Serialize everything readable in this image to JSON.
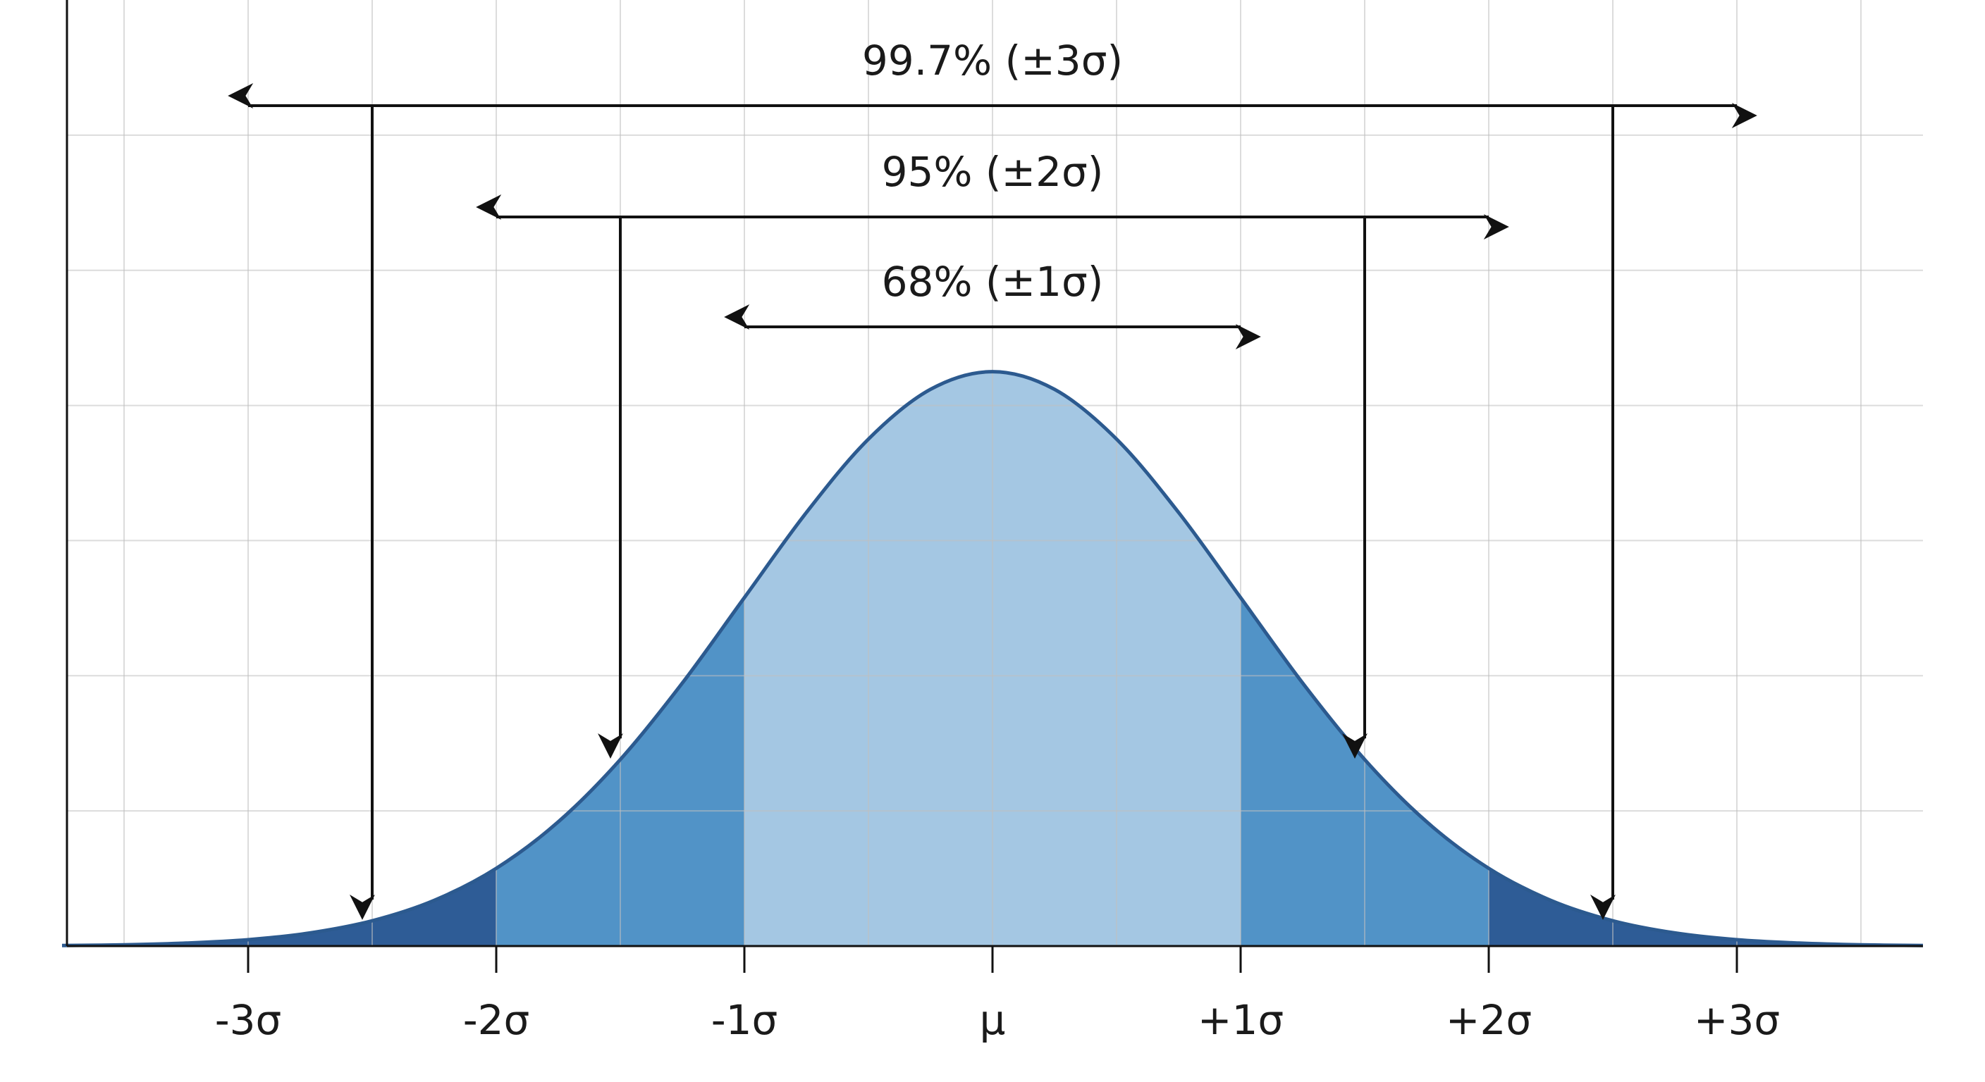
{
  "chart_data": {
    "type": "area",
    "x": [
      -3.75,
      -3.5,
      -3.25,
      -3,
      -2.75,
      -2.5,
      -2.25,
      -2,
      -1.75,
      -1.5,
      -1.25,
      -1,
      -0.75,
      -0.5,
      -0.25,
      0,
      0.25,
      0.5,
      0.75,
      1,
      1.25,
      1.5,
      1.75,
      2,
      2.25,
      2.5,
      2.75,
      3,
      3.25,
      3.5,
      3.75
    ],
    "values": [
      0.004,
      0.009,
      0.022,
      0.047,
      0.097,
      0.187,
      0.338,
      0.575,
      0.919,
      1.38,
      1.946,
      2.578,
      3.208,
      3.751,
      4.119,
      4.25,
      4.119,
      3.751,
      3.208,
      2.578,
      1.946,
      1.38,
      0.919,
      0.575,
      0.338,
      0.187,
      0.097,
      0.047,
      0.022,
      0.009,
      0.004
    ],
    "color": "#2c5a8f",
    "xlim": [
      -3.75,
      3.75
    ],
    "ylim": [
      0,
      7
    ],
    "xticks": [
      {
        "value": -3,
        "label": "-3σ"
      },
      {
        "value": -2,
        "label": "-2σ"
      },
      {
        "value": -1,
        "label": "-1σ"
      },
      {
        "value": 0,
        "label": "μ"
      },
      {
        "value": 1,
        "label": "+1σ"
      },
      {
        "value": 2,
        "label": "+2σ"
      },
      {
        "value": 3,
        "label": "+3σ"
      }
    ],
    "xgrid": [
      -3.5,
      -3,
      -2.5,
      -2,
      -1.5,
      -1,
      -0.5,
      0,
      0.5,
      1,
      1.5,
      2,
      2.5,
      3,
      3.5
    ],
    "ygrid": [
      1,
      2,
      3,
      4,
      5,
      6
    ],
    "grid": true,
    "regions": [
      {
        "range": [
          -3.75,
          -2
        ],
        "color": "#2e5c96"
      },
      {
        "range": [
          -2,
          -1
        ],
        "color": "#5193c7"
      },
      {
        "range": [
          -1,
          1
        ],
        "color": "#a4c7e3"
      },
      {
        "range": [
          1,
          2
        ],
        "color": "#5193c7"
      },
      {
        "range": [
          2,
          3.75
        ],
        "color": "#2e5c96"
      }
    ],
    "annotations": [
      {
        "text": "99.7% (±3σ)",
        "range": [
          -3,
          3
        ],
        "pointers": [
          -2.5,
          2.5
        ]
      },
      {
        "text": "95% (±2σ)",
        "range": [
          -2,
          2
        ],
        "pointers": [
          -1.5,
          1.5
        ]
      },
      {
        "text": "68% (±1σ)",
        "range": [
          -1,
          1
        ],
        "pointers": []
      }
    ]
  }
}
